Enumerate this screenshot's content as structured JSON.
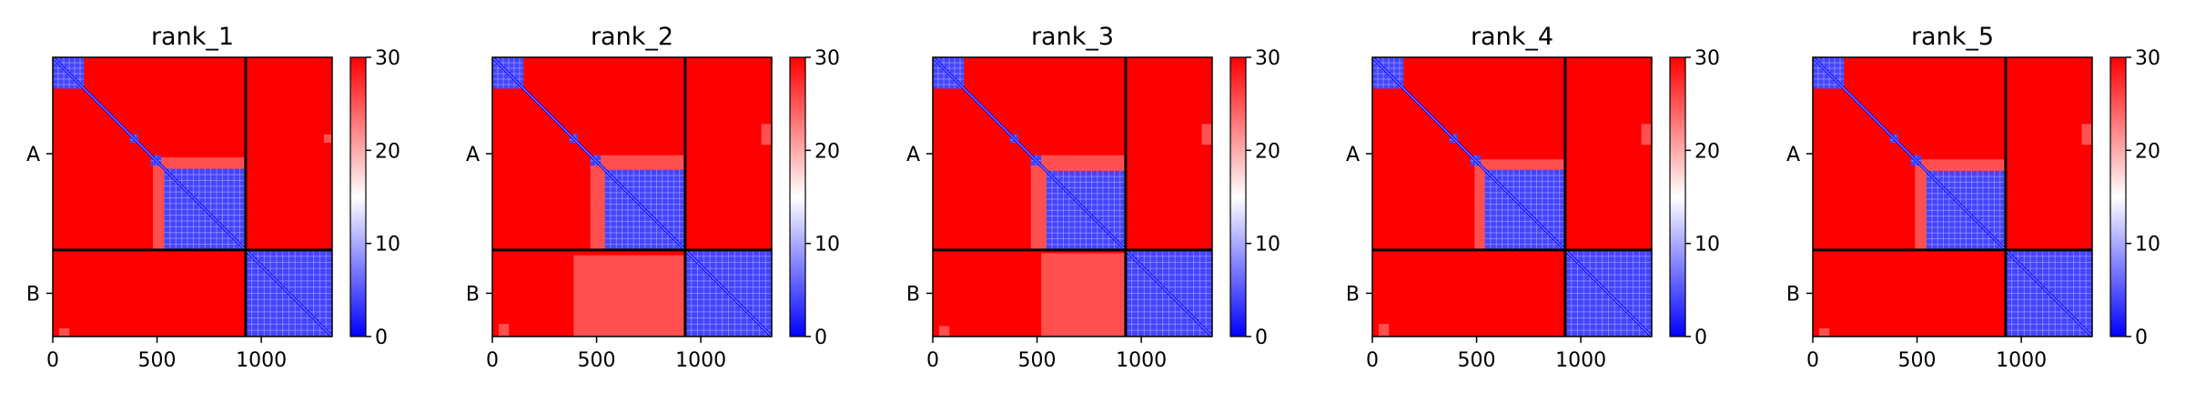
{
  "chart_data": [
    {
      "type": "heatmap",
      "title": "rank_1",
      "xticks": [
        0,
        500,
        1000
      ],
      "xlim": [
        0,
        1340
      ],
      "ylim": [
        1340,
        0
      ],
      "chain_boundary": 925,
      "chains": [
        {
          "label": "A",
          "start": 0,
          "end": 925
        },
        {
          "label": "B",
          "start": 925,
          "end": 1340
        }
      ],
      "colorbar": {
        "min": 0,
        "max": 30,
        "ticks": [
          0,
          10,
          20,
          30
        ],
        "colors": [
          "#0000ff",
          "#ffffff",
          "#ff0000"
        ]
      },
      "low_error_blocks": [
        [
          0,
          150,
          0,
          150
        ],
        [
          535,
          925,
          535,
          925
        ],
        [
          925,
          1340,
          925,
          1340
        ],
        [
          370,
          410,
          370,
          410
        ],
        [
          470,
          520,
          470,
          520
        ]
      ],
      "medium_error_blocks": [
        [
          480,
          925,
          480,
          925
        ],
        [
          30,
          80,
          1300,
          1340
        ],
        [
          1300,
          1340,
          370,
          410
        ]
      ]
    },
    {
      "type": "heatmap",
      "title": "rank_2",
      "xticks": [
        0,
        500,
        1000
      ],
      "xlim": [
        0,
        1340
      ],
      "ylim": [
        1340,
        0
      ],
      "chain_boundary": 925,
      "chains": [
        {
          "label": "A",
          "start": 0,
          "end": 925
        },
        {
          "label": "B",
          "start": 925,
          "end": 1340
        }
      ],
      "colorbar": {
        "min": 0,
        "max": 30,
        "ticks": [
          0,
          10,
          20,
          30
        ],
        "colors": [
          "#0000ff",
          "#ffffff",
          "#ff0000"
        ]
      },
      "low_error_blocks": [
        [
          0,
          150,
          0,
          150
        ],
        [
          540,
          925,
          540,
          925
        ],
        [
          925,
          1340,
          925,
          1340
        ],
        [
          370,
          410,
          370,
          410
        ],
        [
          470,
          520,
          470,
          520
        ]
      ],
      "medium_error_blocks": [
        [
          470,
          925,
          470,
          925
        ],
        [
          390,
          925,
          950,
          1340
        ],
        [
          30,
          80,
          1280,
          1340
        ],
        [
          1290,
          1340,
          320,
          420
        ]
      ]
    },
    {
      "type": "heatmap",
      "title": "rank_3",
      "xticks": [
        0,
        500,
        1000
      ],
      "xlim": [
        0,
        1340
      ],
      "ylim": [
        1340,
        0
      ],
      "chain_boundary": 925,
      "chains": [
        {
          "label": "A",
          "start": 0,
          "end": 925
        },
        {
          "label": "B",
          "start": 925,
          "end": 1340
        }
      ],
      "colorbar": {
        "min": 0,
        "max": 30,
        "ticks": [
          0,
          10,
          20,
          30
        ],
        "colors": [
          "#0000ff",
          "#ffffff",
          "#ff0000"
        ]
      },
      "low_error_blocks": [
        [
          0,
          150,
          0,
          150
        ],
        [
          545,
          925,
          545,
          925
        ],
        [
          925,
          1340,
          925,
          1340
        ],
        [
          370,
          410,
          370,
          410
        ],
        [
          470,
          520,
          470,
          520
        ]
      ],
      "medium_error_blocks": [
        [
          470,
          925,
          470,
          925
        ],
        [
          520,
          925,
          940,
          1340
        ],
        [
          30,
          80,
          1290,
          1340
        ],
        [
          1290,
          1340,
          320,
          420
        ]
      ]
    },
    {
      "type": "heatmap",
      "title": "rank_4",
      "xticks": [
        0,
        500,
        1000
      ],
      "xlim": [
        0,
        1340
      ],
      "ylim": [
        1340,
        0
      ],
      "chain_boundary": 925,
      "chains": [
        {
          "label": "A",
          "start": 0,
          "end": 925
        },
        {
          "label": "B",
          "start": 925,
          "end": 1340
        }
      ],
      "colorbar": {
        "min": 0,
        "max": 30,
        "ticks": [
          0,
          10,
          20,
          30
        ],
        "colors": [
          "#0000ff",
          "#ffffff",
          "#ff0000"
        ]
      },
      "low_error_blocks": [
        [
          0,
          150,
          0,
          150
        ],
        [
          540,
          925,
          540,
          925
        ],
        [
          925,
          1340,
          925,
          1340
        ],
        [
          370,
          410,
          370,
          410
        ],
        [
          470,
          520,
          470,
          520
        ]
      ],
      "medium_error_blocks": [
        [
          490,
          925,
          490,
          925
        ],
        [
          30,
          80,
          1280,
          1340
        ],
        [
          1290,
          1340,
          320,
          420
        ]
      ]
    },
    {
      "type": "heatmap",
      "title": "rank_5",
      "xticks": [
        0,
        500,
        1000
      ],
      "xlim": [
        0,
        1340
      ],
      "ylim": [
        1340,
        0
      ],
      "chain_boundary": 925,
      "chains": [
        {
          "label": "A",
          "start": 0,
          "end": 925
        },
        {
          "label": "B",
          "start": 925,
          "end": 1340
        }
      ],
      "colorbar": {
        "min": 0,
        "max": 30,
        "ticks": [
          0,
          10,
          20,
          30
        ],
        "colors": [
          "#0000ff",
          "#ffffff",
          "#ff0000"
        ]
      },
      "low_error_blocks": [
        [
          0,
          150,
          0,
          150
        ],
        [
          545,
          925,
          545,
          925
        ],
        [
          925,
          1340,
          925,
          1340
        ],
        [
          370,
          410,
          370,
          410
        ],
        [
          470,
          520,
          470,
          520
        ]
      ],
      "medium_error_blocks": [
        [
          490,
          925,
          490,
          925
        ],
        [
          30,
          80,
          1300,
          1340
        ],
        [
          1290,
          1340,
          320,
          420
        ]
      ]
    }
  ]
}
